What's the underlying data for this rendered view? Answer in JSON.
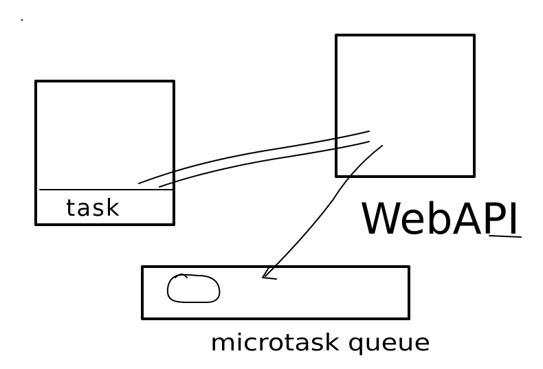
{
  "diagram": {
    "stack_box": {
      "label": "task"
    },
    "web_api_box": {
      "label": "WebAPI"
    },
    "microtask_queue_box": {
      "label": "microtask queue",
      "item": "ellipse"
    }
  },
  "colors": {
    "ink": "#000000",
    "background": "#ffffff"
  }
}
